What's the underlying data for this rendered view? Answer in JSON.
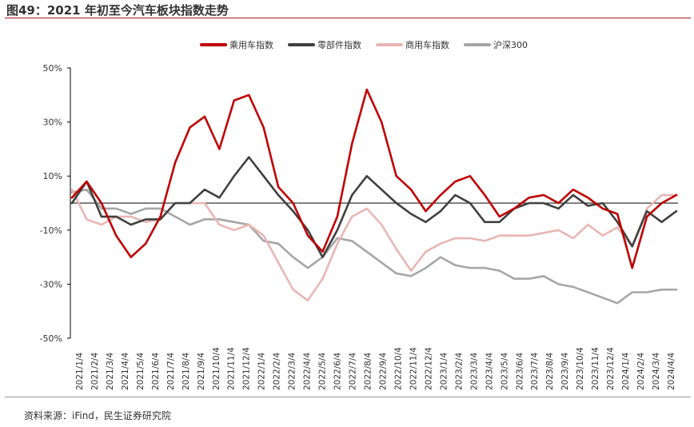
{
  "title": "图49：2021 年初至今汽车板块指数走势",
  "source": "资料来源：iFind，民生证券研究院",
  "colors": {
    "passenger": "#c00000",
    "parts": "#404040",
    "commercial": "#e8b6b4",
    "hs300": "#a6a6a6",
    "title_rule": "#b0171f",
    "axis": "#000000"
  },
  "chart_data": {
    "type": "line",
    "title": "2021 年初至今汽车板块指数走势",
    "xlabel": "",
    "ylabel": "",
    "ylim": [
      -50,
      50
    ],
    "yticks": [
      -50,
      -30,
      -10,
      10,
      30,
      50
    ],
    "ytick_labels": [
      "-50%",
      "-30%",
      "-10%",
      "10%",
      "30%",
      "50%"
    ],
    "legend_position": "top-center",
    "x_ticks": [
      "2021/1/4",
      "2021/2/4",
      "2021/3/4",
      "2021/4/4",
      "2021/5/4",
      "2021/6/4",
      "2021/7/4",
      "2021/8/4",
      "2021/9/4",
      "2021/10/4",
      "2021/11/4",
      "2021/12/4",
      "2022/1/4",
      "2022/2/4",
      "2022/3/4",
      "2022/4/4",
      "2022/5/4",
      "2022/6/4",
      "2022/7/4",
      "2022/8/4",
      "2022/9/4",
      "2022/10/4",
      "2022/11/4",
      "2022/12/4",
      "2023/1/4",
      "2023/2/4",
      "2023/3/4",
      "2023/4/4",
      "2023/5/4",
      "2023/6/4",
      "2023/7/4",
      "2023/8/4",
      "2023/9/4",
      "2023/10/4",
      "2023/11/4",
      "2023/12/4",
      "2024/1/4",
      "2024/2/4",
      "2024/3/4",
      "2024/4/4"
    ],
    "series": [
      {
        "name": "乘用车指数",
        "key": "passenger",
        "values": [
          2,
          8,
          0,
          -12,
          -20,
          -15,
          -5,
          15,
          28,
          32,
          20,
          38,
          40,
          28,
          6,
          0,
          -12,
          -18,
          -5,
          22,
          42,
          30,
          10,
          5,
          -3,
          3,
          8,
          10,
          3,
          -5,
          -2,
          2,
          3,
          0,
          5,
          2,
          -2,
          -4,
          -24,
          -5,
          0,
          3
        ]
      },
      {
        "name": "零部件指数",
        "key": "parts",
        "values": [
          0,
          8,
          -5,
          -5,
          -8,
          -6,
          -6,
          0,
          0,
          5,
          2,
          10,
          17,
          10,
          3,
          -3,
          -10,
          -20,
          -10,
          3,
          10,
          5,
          0,
          -4,
          -7,
          -3,
          3,
          0,
          -7,
          -7,
          -2,
          0,
          0,
          -2,
          3,
          -1,
          0,
          -7,
          -16,
          -3,
          -7,
          -3
        ]
      },
      {
        "name": "商用车指数",
        "key": "commercial",
        "values": [
          5,
          -6,
          -8,
          -5,
          -5,
          -7,
          -6,
          0,
          0,
          0,
          -8,
          -10,
          -8,
          -12,
          -22,
          -32,
          -36,
          -28,
          -15,
          -5,
          -2,
          -8,
          -17,
          -25,
          -18,
          -15,
          -13,
          -13,
          -14,
          -12,
          -12,
          -12,
          -11,
          -10,
          -13,
          -8,
          -12,
          -9,
          -16,
          -2,
          3,
          3
        ]
      },
      {
        "name": "沪深300",
        "key": "hs300",
        "values": [
          4,
          5,
          -2,
          -2,
          -4,
          -2,
          -2,
          -5,
          -8,
          -6,
          -6,
          -7,
          -8,
          -14,
          -15,
          -20,
          -24,
          -20,
          -13,
          -14,
          -18,
          -22,
          -26,
          -27,
          -24,
          -20,
          -23,
          -24,
          -24,
          -25,
          -28,
          -28,
          -27,
          -30,
          -31,
          -33,
          -35,
          -37,
          -33,
          -33,
          -32,
          -32
        ]
      }
    ]
  }
}
